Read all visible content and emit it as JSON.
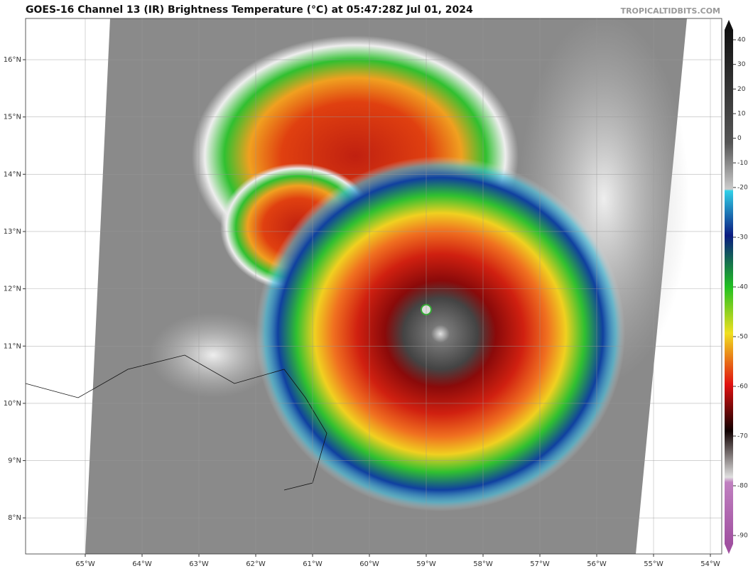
{
  "map": {
    "title": "GOES-16 Channel 13 (IR) Brightness Temperature (°C) at 05:47:28Z Jul 01, 2024",
    "credit": "TROPICALTIDBITS.COM",
    "xlim": [
      -66.05,
      -53.8
    ],
    "ylim": [
      7.37,
      16.72
    ],
    "xticks": [
      {
        "value": -65,
        "label": "65°W"
      },
      {
        "value": -64,
        "label": "64°W"
      },
      {
        "value": -63,
        "label": "63°W"
      },
      {
        "value": -62,
        "label": "62°W"
      },
      {
        "value": -61,
        "label": "61°W"
      },
      {
        "value": -60,
        "label": "60°W"
      },
      {
        "value": -59,
        "label": "59°W"
      },
      {
        "value": -58,
        "label": "58°W"
      },
      {
        "value": -57,
        "label": "57°W"
      },
      {
        "value": -56,
        "label": "56°W"
      },
      {
        "value": -55,
        "label": "55°W"
      },
      {
        "value": -54,
        "label": "54°W"
      }
    ],
    "yticks": [
      {
        "value": 16,
        "label": "16°N"
      },
      {
        "value": 15,
        "label": "15°N"
      },
      {
        "value": 14,
        "label": "14°N"
      },
      {
        "value": 13,
        "label": "13°N"
      },
      {
        "value": 12,
        "label": "12°N"
      },
      {
        "value": 11,
        "label": "11°N"
      },
      {
        "value": 10,
        "label": "10°N"
      },
      {
        "value": 9,
        "label": "9°N"
      },
      {
        "value": 8,
        "label": "8°N"
      }
    ],
    "grid": true,
    "colorbar": {
      "lim": [
        -90,
        40
      ],
      "ticks": [
        40,
        30,
        20,
        10,
        0,
        -10,
        -20,
        -30,
        -40,
        -50,
        -60,
        -70,
        -80,
        -90
      ]
    }
  }
}
